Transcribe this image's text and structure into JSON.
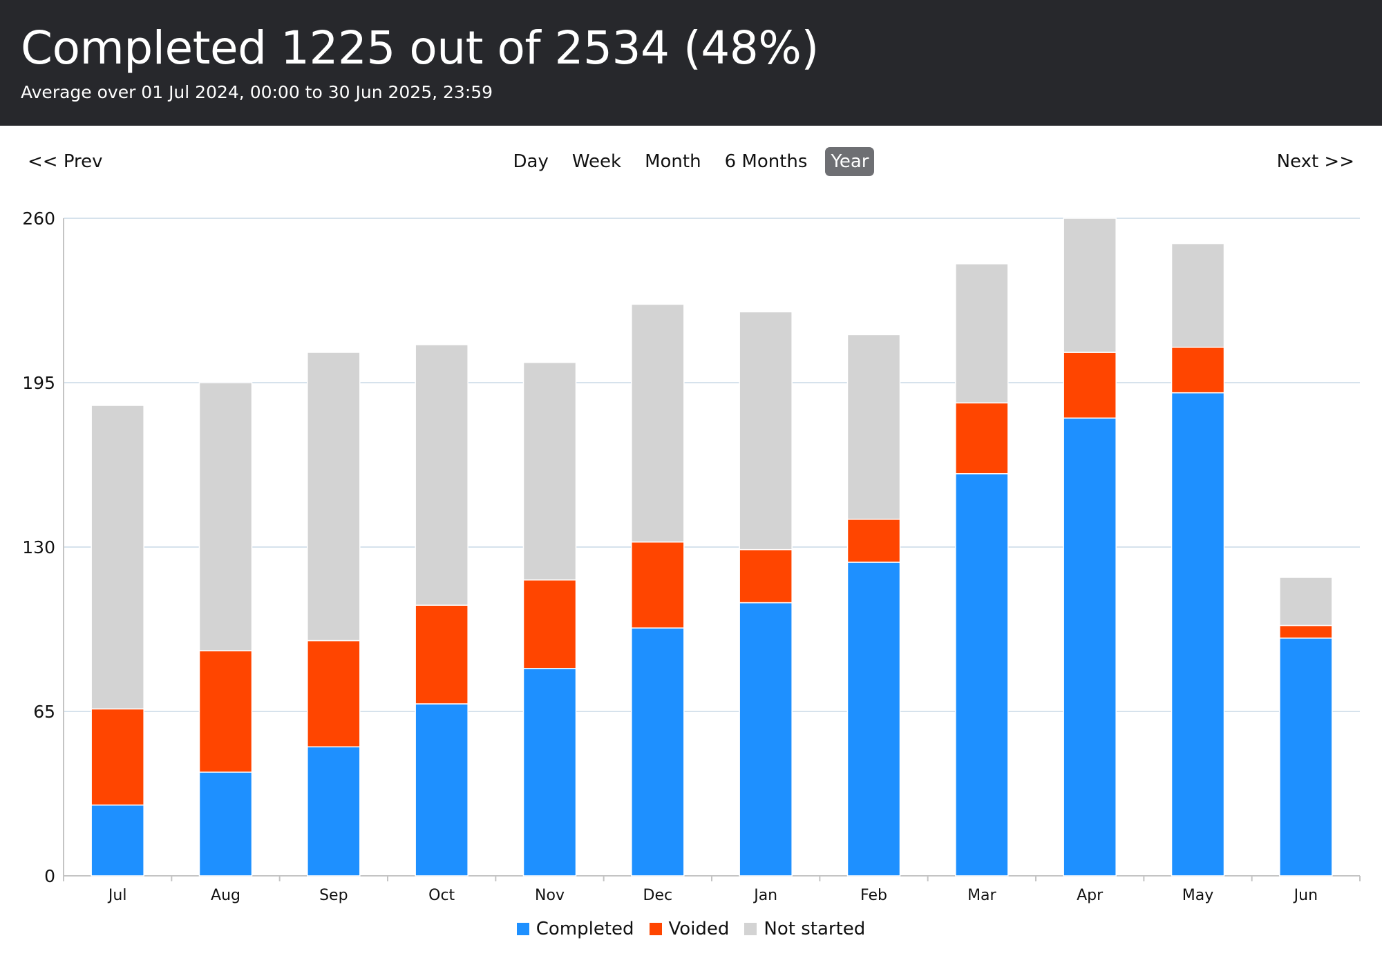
{
  "header": {
    "title": "Completed 1225 out of 2534 (48%)",
    "subtitle": "Average over 01 Jul 2024, 00:00 to 30 Jun 2025, 23:59"
  },
  "nav": {
    "prev_label": "<< Prev",
    "next_label": "Next >>"
  },
  "range_tabs": [
    {
      "label": "Day",
      "active": false
    },
    {
      "label": "Week",
      "active": false
    },
    {
      "label": "Month",
      "active": false
    },
    {
      "label": "6 Months",
      "active": false
    },
    {
      "label": "Year",
      "active": true
    }
  ],
  "chart_data": {
    "type": "bar",
    "stacked": true,
    "categories": [
      "Jul",
      "Aug",
      "Sep",
      "Oct",
      "Nov",
      "Dec",
      "Jan",
      "Feb",
      "Mar",
      "Apr",
      "May",
      "Jun"
    ],
    "series": [
      {
        "name": "Completed",
        "color": "#1e90ff",
        "values": [
          28,
          41,
          51,
          68,
          82,
          98,
          108,
          124,
          159,
          181,
          191,
          94
        ]
      },
      {
        "name": "Voided",
        "color": "#ff4500",
        "values": [
          38,
          48,
          42,
          39,
          35,
          34,
          21,
          17,
          28,
          26,
          18,
          5
        ]
      },
      {
        "name": "Not started",
        "color": "#d3d3d3",
        "values": [
          120,
          106,
          114,
          103,
          86,
          94,
          94,
          73,
          55,
          53,
          41,
          19
        ]
      }
    ],
    "yticks": [
      0,
      65,
      130,
      195,
      260
    ],
    "ylim": [
      0,
      260
    ],
    "grid": true,
    "legend_position": "bottom"
  }
}
